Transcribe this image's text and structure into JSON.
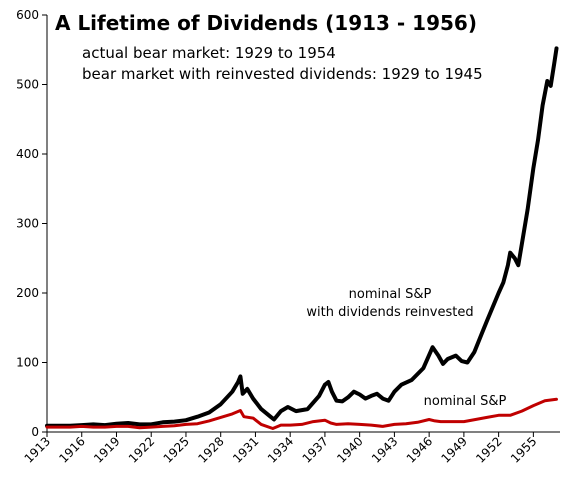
{
  "chart_data": {
    "type": "line",
    "title": "A Lifetime of Dividends (1913 - 1956)",
    "subtitles": [
      "actual bear market: 1929 to 1954",
      "bear market with reinvested dividends: 1929 to 1945"
    ],
    "xlabel": "",
    "ylabel": "",
    "xlim": [
      1913,
      1957.3
    ],
    "ylim": [
      0,
      600
    ],
    "x_tick_labels": [
      "1913",
      "1916",
      "1919",
      "1922",
      "1925",
      "1928",
      "1931",
      "1934",
      "1937",
      "1940",
      "1943",
      "1946",
      "1949",
      "1952",
      "1955"
    ],
    "y_tick_labels": [
      "0",
      "100",
      "200",
      "300",
      "400",
      "500",
      "600"
    ],
    "grid": false,
    "legend": "none",
    "annotations": [
      {
        "text": "nominal S&P",
        "series": "nominal S&P with dividends reinvested",
        "line": 1
      },
      {
        "text": "with dividends reinvested",
        "series": "nominal S&P with dividends reinvested",
        "line": 2
      },
      {
        "text": "nominal S&P",
        "series": "nominal S&P",
        "line": 1
      }
    ],
    "series": [
      {
        "name": "nominal S&P with dividends reinvested",
        "color": "#000000",
        "points": [
          [
            1913,
            9
          ],
          [
            1914,
            9
          ],
          [
            1915,
            9
          ],
          [
            1916,
            10
          ],
          [
            1917,
            11
          ],
          [
            1918,
            10
          ],
          [
            1919,
            12
          ],
          [
            1920,
            13
          ],
          [
            1921,
            11
          ],
          [
            1922,
            11
          ],
          [
            1923,
            14
          ],
          [
            1924,
            15
          ],
          [
            1925,
            17
          ],
          [
            1926,
            22
          ],
          [
            1927,
            28
          ],
          [
            1928,
            40
          ],
          [
            1929,
            58
          ],
          [
            1929.5,
            72
          ],
          [
            1929.7,
            80
          ],
          [
            1929.9,
            55
          ],
          [
            1930.3,
            62
          ],
          [
            1930.8,
            48
          ],
          [
            1931.5,
            33
          ],
          [
            1932.3,
            22
          ],
          [
            1932.6,
            18
          ],
          [
            1933.2,
            30
          ],
          [
            1933.8,
            36
          ],
          [
            1934.5,
            30
          ],
          [
            1935.5,
            33
          ],
          [
            1936.5,
            52
          ],
          [
            1937.0,
            68
          ],
          [
            1937.3,
            72
          ],
          [
            1937.6,
            58
          ],
          [
            1938.0,
            45
          ],
          [
            1938.5,
            44
          ],
          [
            1939.0,
            50
          ],
          [
            1939.5,
            58
          ],
          [
            1940.0,
            54
          ],
          [
            1940.5,
            48
          ],
          [
            1941.0,
            52
          ],
          [
            1941.5,
            55
          ],
          [
            1942.0,
            48
          ],
          [
            1942.5,
            45
          ],
          [
            1943.0,
            58
          ],
          [
            1943.6,
            68
          ],
          [
            1944.5,
            75
          ],
          [
            1945.5,
            92
          ],
          [
            1946.3,
            122
          ],
          [
            1946.8,
            110
          ],
          [
            1947.2,
            98
          ],
          [
            1947.6,
            105
          ],
          [
            1948.3,
            110
          ],
          [
            1948.8,
            102
          ],
          [
            1949.3,
            100
          ],
          [
            1949.9,
            115
          ],
          [
            1950.5,
            140
          ],
          [
            1951.0,
            160
          ],
          [
            1951.5,
            180
          ],
          [
            1952.0,
            200
          ],
          [
            1952.4,
            215
          ],
          [
            1952.8,
            240
          ],
          [
            1953.0,
            258
          ],
          [
            1953.4,
            250
          ],
          [
            1953.7,
            240
          ],
          [
            1954.0,
            270
          ],
          [
            1954.5,
            320
          ],
          [
            1955.0,
            380
          ],
          [
            1955.4,
            420
          ],
          [
            1955.8,
            470
          ],
          [
            1956.2,
            505
          ],
          [
            1956.5,
            498
          ],
          [
            1956.8,
            530
          ],
          [
            1957.0,
            552
          ]
        ]
      },
      {
        "name": "nominal S&P",
        "color": "#c00000",
        "points": [
          [
            1913,
            7
          ],
          [
            1915,
            7
          ],
          [
            1916,
            8
          ],
          [
            1917,
            7
          ],
          [
            1918,
            7
          ],
          [
            1919,
            8
          ],
          [
            1920,
            8
          ],
          [
            1921,
            6
          ],
          [
            1922,
            7
          ],
          [
            1923,
            8
          ],
          [
            1924,
            9
          ],
          [
            1925,
            11
          ],
          [
            1926,
            12
          ],
          [
            1927,
            16
          ],
          [
            1928,
            21
          ],
          [
            1929.0,
            26
          ],
          [
            1929.7,
            31
          ],
          [
            1930.0,
            22
          ],
          [
            1930.8,
            20
          ],
          [
            1931.5,
            11
          ],
          [
            1932.5,
            5
          ],
          [
            1933.2,
            10
          ],
          [
            1934.0,
            10
          ],
          [
            1935.0,
            11
          ],
          [
            1936.0,
            15
          ],
          [
            1937.0,
            17
          ],
          [
            1937.5,
            13
          ],
          [
            1938.0,
            11
          ],
          [
            1939.0,
            12
          ],
          [
            1940.0,
            11
          ],
          [
            1941.0,
            10
          ],
          [
            1942.0,
            8
          ],
          [
            1943.0,
            11
          ],
          [
            1944.0,
            12
          ],
          [
            1945.0,
            14
          ],
          [
            1946.0,
            18
          ],
          [
            1946.5,
            16
          ],
          [
            1947.0,
            15
          ],
          [
            1948.0,
            15
          ],
          [
            1949.0,
            15
          ],
          [
            1950.0,
            18
          ],
          [
            1951.0,
            21
          ],
          [
            1952.0,
            24
          ],
          [
            1953.0,
            24
          ],
          [
            1954.0,
            30
          ],
          [
            1955.0,
            38
          ],
          [
            1956.0,
            45
          ],
          [
            1957.0,
            47
          ]
        ]
      }
    ]
  }
}
